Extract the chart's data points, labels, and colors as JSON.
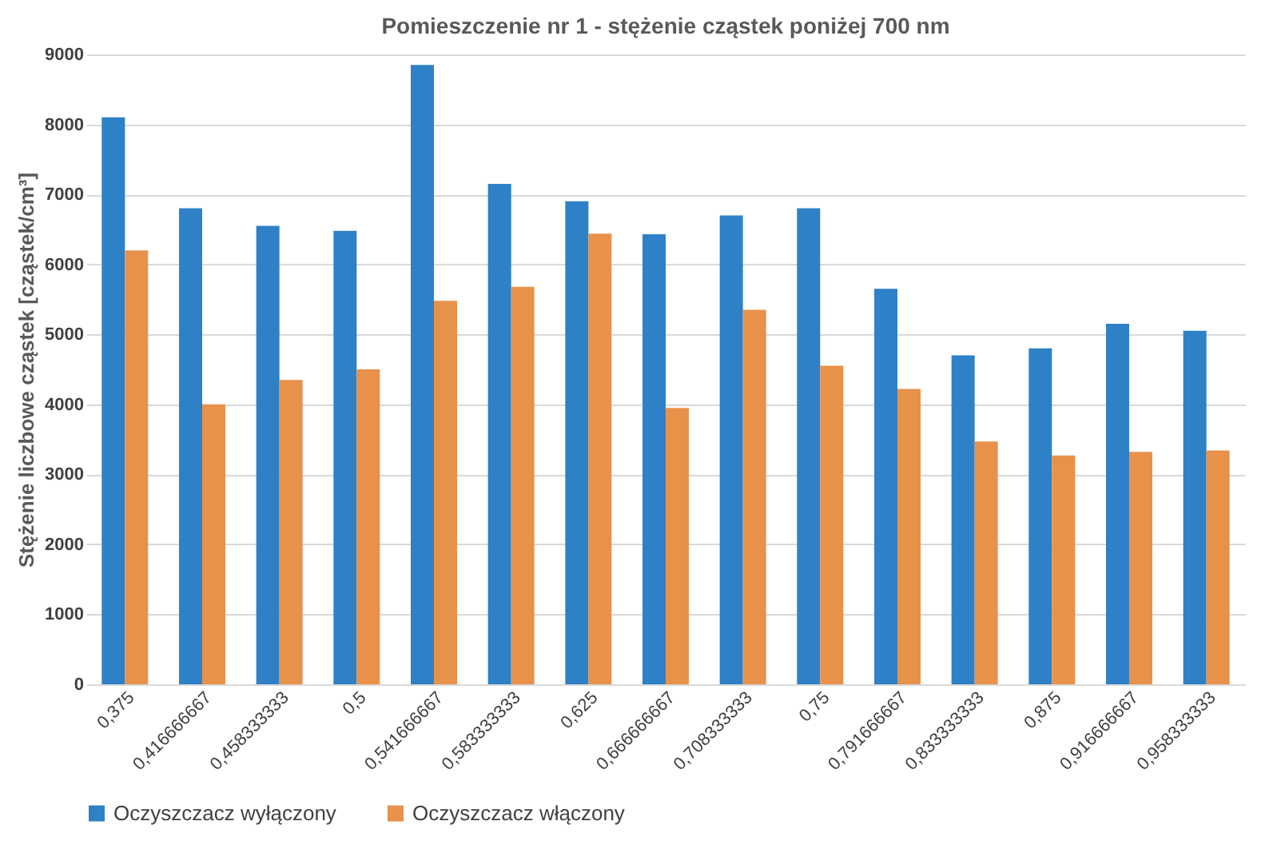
{
  "chart_data": {
    "type": "bar",
    "title": "Pomieszczenie nr 1 - stężenie cząstek poniżej 700 nm",
    "ylabel": "Stężenie liczbowe cząstek [cząstek/cm³]",
    "categories": [
      "0,375",
      "0,416666667",
      "0,458333333",
      "0,5",
      "0,541666667",
      "0,583333333",
      "0,625",
      "0,666666667",
      "0,708333333",
      "0,75",
      "0,791666667",
      "0,833333333",
      "0,875",
      "0,916666667",
      "0,958333333"
    ],
    "series": [
      {
        "name": "Oczyszczacz wyłączony",
        "color": "#2e81c6",
        "values": [
          8100,
          6800,
          6550,
          6480,
          8850,
          7150,
          6900,
          6430,
          6700,
          6800,
          5650,
          4700,
          4800,
          5150,
          5050
        ]
      },
      {
        "name": "Oczyszczacz włączony",
        "color": "#e8914b",
        "values": [
          6200,
          4000,
          4350,
          4500,
          5480,
          5680,
          6440,
          3950,
          5350,
          4550,
          4220,
          3470,
          3270,
          3320,
          3340
        ]
      }
    ],
    "ylim": [
      0,
      9000
    ],
    "yticks": [
      0,
      1000,
      2000,
      3000,
      4000,
      5000,
      6000,
      7000,
      8000,
      9000
    ],
    "grid": "y",
    "legend": "bottom"
  }
}
